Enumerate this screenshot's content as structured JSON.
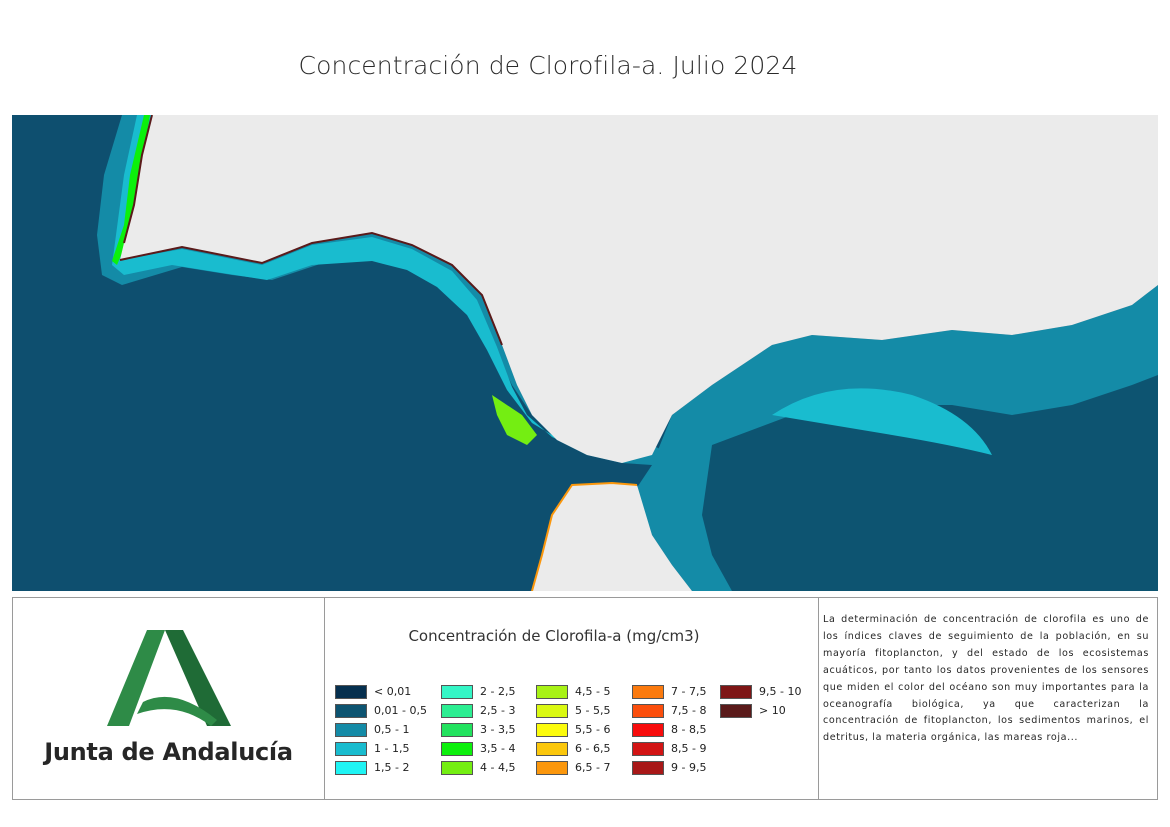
{
  "page": {
    "title": "Concentración de Clorofila-a. Julio 2024"
  },
  "map": {
    "land_color": "#ebebeb",
    "ocean_color": "#0e4f6f"
  },
  "logo": {
    "text": "Junta de Andalucía",
    "mark_icon": "junta-andalucia-a-logo-icon",
    "mark_color": "#2e8b47"
  },
  "legend": {
    "title": "Concentración de Clorofila-a (mg/cm3)",
    "items": [
      {
        "label": "< 0,01",
        "color": "#06304f"
      },
      {
        "label": "0,01 - 0,5",
        "color": "#0d5471"
      },
      {
        "label": "0,5 - 1",
        "color": "#148ba7"
      },
      {
        "label": "1 - 1,5",
        "color": "#19bccf"
      },
      {
        "label": "1,5 - 2",
        "color": "#1ff4f4"
      },
      {
        "label": "2 - 2,5",
        "color": "#34f6c6"
      },
      {
        "label": "2,5 - 3",
        "color": "#2cee92"
      },
      {
        "label": "3 - 3,5",
        "color": "#22e25e"
      },
      {
        "label": "3,5 - 4",
        "color": "#0cf00c"
      },
      {
        "label": "4 - 4,5",
        "color": "#74ee12"
      },
      {
        "label": "4,5 - 5",
        "color": "#a8f216"
      },
      {
        "label": "5 - 5,5",
        "color": "#daf912"
      },
      {
        "label": "5,5 - 6",
        "color": "#fbfb0c"
      },
      {
        "label": "6 - 6,5",
        "color": "#fbc70c"
      },
      {
        "label": "6,5 - 7",
        "color": "#fb970c"
      },
      {
        "label": "7 - 7,5",
        "color": "#fb7a0e"
      },
      {
        "label": "7,5 - 8",
        "color": "#fb4e0c"
      },
      {
        "label": "8 - 8,5",
        "color": "#f80c0c"
      },
      {
        "label": "8,5 - 9",
        "color": "#d21414"
      },
      {
        "label": "9 - 9,5",
        "color": "#a81818"
      },
      {
        "label": "9,5 - 10",
        "color": "#7e1616"
      },
      {
        "label": "> 10",
        "color": "#5a1a1a"
      }
    ]
  },
  "description": {
    "text": "La determinación de concentración de clorofila es uno de los índices claves de seguimiento de la población, en su mayoría fitoplancton, y del estado de los ecosistemas acuáticos, por tanto los datos provenientes de los sensores que miden el color del océano son muy importantes para la oceanografía biológica, ya que caracterizan la concentración de fitoplancton, los sedimentos marinos, el detritus, la materia orgánica, las mareas roja..."
  }
}
